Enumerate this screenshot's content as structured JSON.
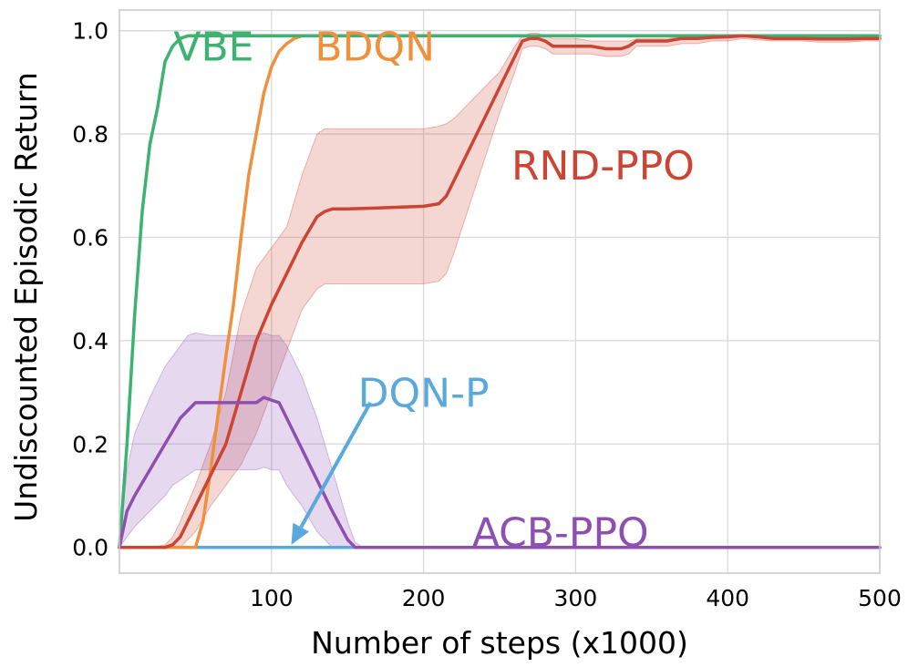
{
  "chart_data": {
    "type": "line",
    "title": "",
    "xlabel": "Number of steps (x1000)",
    "ylabel": "Undiscounted Episodic Return",
    "xlim": [
      0,
      500
    ],
    "ylim": [
      -0.05,
      1.04
    ],
    "x_ticks": [
      100,
      200,
      300,
      400,
      500
    ],
    "y_ticks": [
      0.0,
      0.2,
      0.4,
      0.6,
      0.8,
      1.0
    ],
    "x_tick_labels": [
      "100",
      "200",
      "300",
      "400",
      "500"
    ],
    "y_tick_labels": [
      "0.0",
      "0.2",
      "0.4",
      "0.6",
      "0.8",
      "1.0"
    ],
    "grid": true,
    "legend": "inline labels",
    "series": [
      {
        "name": "VBE",
        "label": "VBE",
        "color": "#3cb371",
        "x": [
          0,
          5,
          10,
          15,
          20,
          25,
          30,
          35,
          40,
          45,
          50,
          60,
          80,
          100,
          120,
          500
        ],
        "y": [
          0.0,
          0.2,
          0.45,
          0.65,
          0.78,
          0.85,
          0.94,
          0.97,
          0.985,
          0.99,
          0.99,
          0.99,
          0.99,
          0.99,
          0.99,
          0.99
        ]
      },
      {
        "name": "BDQN",
        "label": "BDQN",
        "color": "#f0903a",
        "x": [
          0,
          20,
          35,
          50,
          55,
          60,
          65,
          70,
          75,
          80,
          85,
          90,
          95,
          100,
          105,
          110,
          115,
          120,
          200,
          300,
          400,
          500
        ],
        "y": [
          0.0,
          0.0,
          0.0,
          0.0,
          0.05,
          0.15,
          0.26,
          0.37,
          0.47,
          0.6,
          0.72,
          0.8,
          0.88,
          0.93,
          0.96,
          0.975,
          0.985,
          0.99,
          0.99,
          0.99,
          0.99,
          0.99
        ]
      },
      {
        "name": "RND-PPO",
        "label": "RND-PPO",
        "color": "#cc4433",
        "x": [
          0,
          20,
          30,
          35,
          40,
          50,
          60,
          70,
          80,
          90,
          100,
          110,
          120,
          130,
          135,
          140,
          150,
          170,
          200,
          210,
          215,
          220,
          230,
          240,
          250,
          260,
          265,
          270,
          275,
          280,
          285,
          290,
          300,
          310,
          320,
          330,
          335,
          340,
          350,
          360,
          370,
          380,
          390,
          400,
          410,
          420,
          430,
          440,
          450,
          460,
          470,
          480,
          490,
          500
        ],
        "y": [
          0.0,
          0.0,
          0.0,
          0.005,
          0.02,
          0.08,
          0.14,
          0.2,
          0.3,
          0.4,
          0.47,
          0.53,
          0.59,
          0.64,
          0.65,
          0.655,
          0.655,
          0.657,
          0.66,
          0.665,
          0.68,
          0.71,
          0.77,
          0.83,
          0.89,
          0.95,
          0.98,
          0.985,
          0.985,
          0.98,
          0.97,
          0.97,
          0.97,
          0.97,
          0.965,
          0.965,
          0.97,
          0.98,
          0.98,
          0.98,
          0.985,
          0.985,
          0.987,
          0.988,
          0.99,
          0.988,
          0.985,
          0.985,
          0.985,
          0.984,
          0.984,
          0.984,
          0.985,
          0.985
        ],
        "band_upper": [
          0.0,
          0.0,
          0.005,
          0.02,
          0.05,
          0.12,
          0.2,
          0.3,
          0.45,
          0.54,
          0.58,
          0.62,
          0.72,
          0.8,
          0.81,
          0.81,
          0.81,
          0.81,
          0.81,
          0.815,
          0.82,
          0.83,
          0.86,
          0.89,
          0.92,
          0.97,
          0.99,
          0.995,
          0.995,
          0.99,
          0.985,
          0.985,
          0.985,
          0.98,
          0.98,
          0.98,
          0.98,
          0.985,
          0.985,
          0.985,
          0.988,
          0.988,
          0.99,
          0.99,
          0.992,
          0.99,
          0.99,
          0.99,
          0.99,
          0.988,
          0.988,
          0.988,
          0.99,
          0.99
        ],
        "band_lower": [
          0.0,
          0.0,
          0.0,
          0.0,
          0.0,
          0.03,
          0.08,
          0.12,
          0.16,
          0.22,
          0.3,
          0.38,
          0.46,
          0.5,
          0.51,
          0.51,
          0.51,
          0.51,
          0.51,
          0.515,
          0.53,
          0.57,
          0.66,
          0.75,
          0.84,
          0.92,
          0.965,
          0.97,
          0.97,
          0.965,
          0.955,
          0.955,
          0.955,
          0.955,
          0.95,
          0.95,
          0.955,
          0.97,
          0.97,
          0.97,
          0.975,
          0.975,
          0.98,
          0.98,
          0.985,
          0.982,
          0.98,
          0.98,
          0.98,
          0.978,
          0.978,
          0.978,
          0.98,
          0.98
        ]
      },
      {
        "name": "DQN-P",
        "label": "DQN-P",
        "color": "#5aa9dd",
        "x": [
          0,
          100,
          200,
          300,
          400,
          500
        ],
        "y": [
          0.0,
          0.0,
          0.0,
          0.0,
          0.0,
          0.0
        ]
      },
      {
        "name": "ACB-PPO",
        "label": "ACB-PPO",
        "color": "#8e4fb0",
        "x": [
          0,
          5,
          10,
          20,
          30,
          35,
          40,
          45,
          50,
          60,
          70,
          80,
          90,
          95,
          100,
          105,
          110,
          120,
          130,
          140,
          150,
          155,
          160,
          200,
          300,
          400,
          500
        ],
        "y": [
          0.0,
          0.07,
          0.1,
          0.15,
          0.2,
          0.225,
          0.25,
          0.265,
          0.28,
          0.28,
          0.28,
          0.28,
          0.28,
          0.29,
          0.285,
          0.28,
          0.25,
          0.19,
          0.13,
          0.07,
          0.015,
          0.0,
          0.0,
          0.0,
          0.0,
          0.0,
          0.0
        ],
        "band_upper": [
          0.0,
          0.15,
          0.22,
          0.29,
          0.35,
          0.37,
          0.39,
          0.41,
          0.415,
          0.41,
          0.41,
          0.41,
          0.41,
          0.415,
          0.41,
          0.41,
          0.39,
          0.33,
          0.25,
          0.15,
          0.05,
          0.01,
          0.0,
          0.0,
          0.0,
          0.0,
          0.0
        ],
        "band_lower": [
          0.0,
          0.02,
          0.04,
          0.07,
          0.1,
          0.12,
          0.13,
          0.14,
          0.15,
          0.15,
          0.15,
          0.15,
          0.15,
          0.155,
          0.15,
          0.15,
          0.12,
          0.08,
          0.03,
          0.0,
          0.0,
          0.0,
          0.0,
          0.0,
          0.0,
          0.0,
          0.0
        ]
      }
    ],
    "annotations": [
      {
        "text": "VBE",
        "x": 62,
        "y": 0.97,
        "color": "#3cb371"
      },
      {
        "text": "BDQN",
        "x": 168,
        "y": 0.97,
        "color": "#f0903a"
      },
      {
        "text": "RND-PPO",
        "x": 318,
        "y": 0.74,
        "color": "#cc4433"
      },
      {
        "text": "DQN-P",
        "x": 200,
        "y": 0.3,
        "color": "#5aa9dd"
      },
      {
        "text": "ACB-PPO",
        "x": 290,
        "y": 0.03,
        "color": "#8e4fb0"
      }
    ],
    "arrow": {
      "from_x": 165,
      "from_y": 0.28,
      "to_x": 113,
      "to_y": 0.005,
      "color": "#5aa9dd"
    }
  }
}
